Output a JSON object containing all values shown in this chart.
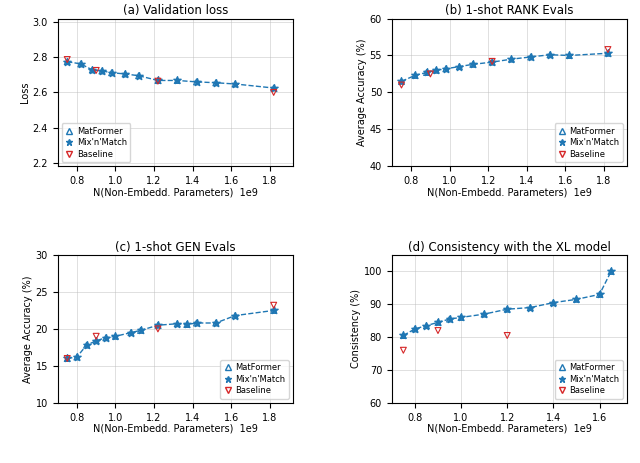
{
  "subplot_a": {
    "title": "(a) Validation loss",
    "ylabel": "Loss",
    "xlabel": "N(Non-Embedd. Parameters)  1e9",
    "xlim": [
      700000000.0,
      1920000000.0
    ],
    "ylim": [
      2.18,
      3.02
    ],
    "yticks": [
      2.2,
      2.4,
      2.6,
      2.8,
      3.0
    ],
    "xtick_start": 800000000.0,
    "xtick_step": 200000000.0,
    "xtick_end": 1920000000.0,
    "matformer_x": [
      750000000.0,
      820000000.0,
      880000000.0,
      930000000.0,
      980000000.0,
      1050000000.0,
      1120000000.0,
      1220000000.0,
      1320000000.0,
      1420000000.0,
      1520000000.0,
      1620000000.0,
      1820000000.0
    ],
    "matformer_y": [
      2.775,
      2.762,
      2.728,
      2.722,
      2.712,
      2.705,
      2.695,
      2.668,
      2.668,
      2.66,
      2.655,
      2.648,
      2.625
    ],
    "mixnmatch_x": [
      750000000.0,
      820000000.0,
      880000000.0,
      930000000.0,
      980000000.0,
      1050000000.0,
      1120000000.0,
      1220000000.0,
      1320000000.0,
      1420000000.0,
      1520000000.0,
      1620000000.0,
      1820000000.0
    ],
    "mixnmatch_y": [
      2.775,
      2.762,
      2.728,
      2.722,
      2.712,
      2.705,
      2.695,
      2.668,
      2.668,
      2.66,
      2.655,
      2.648,
      2.625
    ],
    "baseline_x": [
      750000000.0,
      900000000.0,
      1220000000.0,
      1820000000.0
    ],
    "baseline_y": [
      2.787,
      2.725,
      2.664,
      2.6
    ],
    "legend_loc": "lower left"
  },
  "subplot_b": {
    "title": "(b) 1-shot RANK Evals",
    "ylabel": "Average Accuracy (%)",
    "xlabel": "N(Non-Embedd. Parameters)  1e9",
    "xlim": [
      700000000.0,
      1920000000.0
    ],
    "ylim": [
      40,
      60
    ],
    "yticks": [
      40,
      45,
      50,
      55,
      60
    ],
    "xtick_start": 800000000.0,
    "xtick_step": 200000000.0,
    "xtick_end": 1920000000.0,
    "matformer_x": [
      750000000.0,
      820000000.0,
      880000000.0,
      930000000.0,
      980000000.0,
      1050000000.0,
      1120000000.0,
      1220000000.0,
      1320000000.0,
      1420000000.0,
      1520000000.0,
      1620000000.0,
      1820000000.0
    ],
    "matformer_y": [
      51.5,
      52.3,
      52.7,
      53.0,
      53.2,
      53.5,
      53.8,
      54.1,
      54.5,
      54.8,
      55.1,
      55.0,
      55.3
    ],
    "mixnmatch_x": [
      750000000.0,
      820000000.0,
      880000000.0,
      930000000.0,
      980000000.0,
      1050000000.0,
      1120000000.0,
      1220000000.0,
      1320000000.0,
      1420000000.0,
      1520000000.0,
      1620000000.0,
      1820000000.0
    ],
    "mixnmatch_y": [
      51.5,
      52.3,
      52.7,
      53.0,
      53.2,
      53.5,
      53.8,
      54.1,
      54.5,
      54.8,
      55.1,
      55.0,
      55.3
    ],
    "baseline_x": [
      750000000.0,
      900000000.0,
      1220000000.0,
      1820000000.0
    ],
    "baseline_y": [
      51.0,
      52.5,
      54.2,
      55.8
    ],
    "legend_loc": "lower right"
  },
  "subplot_c": {
    "title": "(c) 1-shot GEN Evals",
    "ylabel": "Average Accuracy (%)",
    "xlabel": "N(Non-Embedd. Parameters)  1e9",
    "xlim": [
      700000000.0,
      1920000000.0
    ],
    "ylim": [
      10,
      30
    ],
    "yticks": [
      10,
      15,
      20,
      25,
      30
    ],
    "xtick_start": 800000000.0,
    "xtick_step": 200000000.0,
    "xtick_end": 1920000000.0,
    "matformer_x": [
      750000000.0,
      800000000.0,
      850000000.0,
      900000000.0,
      950000000.0,
      1000000000.0,
      1080000000.0,
      1130000000.0,
      1220000000.0,
      1320000000.0,
      1370000000.0,
      1420000000.0,
      1520000000.0,
      1620000000.0,
      1820000000.0
    ],
    "matformer_y": [
      16.0,
      16.2,
      17.8,
      18.4,
      18.8,
      19.0,
      19.5,
      19.8,
      20.5,
      20.7,
      20.6,
      20.8,
      20.8,
      21.8,
      22.5
    ],
    "mixnmatch_x": [
      750000000.0,
      800000000.0,
      850000000.0,
      900000000.0,
      950000000.0,
      1000000000.0,
      1080000000.0,
      1130000000.0,
      1220000000.0,
      1320000000.0,
      1370000000.0,
      1420000000.0,
      1520000000.0,
      1620000000.0,
      1820000000.0
    ],
    "mixnmatch_y": [
      16.0,
      16.2,
      17.8,
      18.4,
      18.8,
      19.0,
      19.5,
      19.8,
      20.5,
      20.7,
      20.6,
      20.8,
      20.8,
      21.8,
      22.5
    ],
    "baseline_x": [
      750000000.0,
      900000000.0,
      1220000000.0,
      1820000000.0
    ],
    "baseline_y": [
      16.0,
      19.0,
      20.0,
      23.2
    ],
    "legend_loc": "lower right"
  },
  "subplot_d": {
    "title": "(d) Consistency with the XL model",
    "ylabel": "Consistency (%)",
    "xlabel": "N(Non-Embedd. Parameters)  1e9",
    "xlim": [
      700000000.0,
      1720000000.0
    ],
    "ylim": [
      60,
      105
    ],
    "yticks": [
      60,
      70,
      80,
      90,
      100
    ],
    "xtick_start": 800000000.0,
    "xtick_step": 200000000.0,
    "xtick_end": 1720000000.0,
    "matformer_x": [
      750000000.0,
      800000000.0,
      850000000.0,
      900000000.0,
      950000000.0,
      1000000000.0,
      1100000000.0,
      1200000000.0,
      1300000000.0,
      1400000000.0,
      1500000000.0,
      1600000000.0,
      1650000000.0
    ],
    "matformer_y": [
      80.5,
      82.5,
      83.5,
      84.5,
      85.5,
      86.0,
      87.0,
      88.5,
      89.0,
      90.5,
      91.5,
      93.0,
      100.0
    ],
    "mixnmatch_x": [
      750000000.0,
      800000000.0,
      850000000.0,
      900000000.0,
      950000000.0,
      1000000000.0,
      1100000000.0,
      1200000000.0,
      1300000000.0,
      1400000000.0,
      1500000000.0,
      1600000000.0,
      1650000000.0
    ],
    "mixnmatch_y": [
      80.5,
      82.5,
      83.5,
      84.5,
      85.5,
      86.0,
      87.0,
      88.5,
      89.0,
      90.5,
      91.5,
      93.0,
      100.0
    ],
    "baseline_x": [
      750000000.0,
      900000000.0,
      1200000000.0
    ],
    "baseline_y": [
      76.0,
      82.0,
      80.5
    ],
    "legend_loc": "lower right"
  },
  "blue": "#1f77b4",
  "red": "#d62728"
}
